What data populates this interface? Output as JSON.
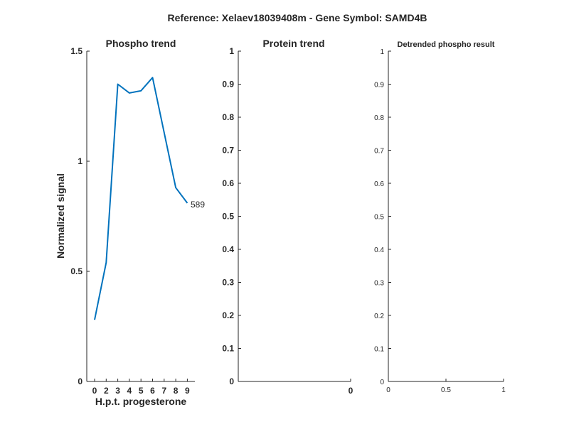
{
  "figure_title": "Reference:  Xelaev18039408m - Gene Symbol:  SAMD4B",
  "colors": {
    "series": "#0072BD",
    "axes": "#262626"
  },
  "chart_data": [
    {
      "type": "line",
      "title": "Phospho trend",
      "xlabel": "H.p.t. progesterone",
      "ylabel": "Normalized signal",
      "x_ticks": [
        "0",
        "2",
        "3",
        "4",
        "5",
        "6",
        "7",
        "8",
        "9"
      ],
      "y_ticks": [
        "0",
        "0.5",
        "1",
        "1.5"
      ],
      "ylim": [
        0,
        1.5
      ],
      "series": [
        {
          "x": [
            0,
            2,
            3,
            4,
            5,
            6,
            7,
            8,
            9
          ],
          "values": [
            0.28,
            0.54,
            1.35,
            1.31,
            1.32,
            1.38,
            1.13,
            0.88,
            0.81
          ]
        }
      ],
      "annotation": "589",
      "grid": false
    },
    {
      "type": "line",
      "title": "Protein trend",
      "xlabel": "",
      "ylabel": "",
      "x_ticks": [
        "0"
      ],
      "y_ticks": [
        "0",
        "0.1",
        "0.2",
        "0.3",
        "0.4",
        "0.5",
        "0.6",
        "0.7",
        "0.8",
        "0.9",
        "1"
      ],
      "ylim": [
        0,
        1
      ],
      "series": [],
      "grid": false
    },
    {
      "type": "line",
      "title": "Detrended phospho result",
      "xlabel": "",
      "ylabel": "",
      "x_ticks": [
        "0",
        "0.5",
        "1"
      ],
      "xlim": [
        0,
        1
      ],
      "y_ticks": [
        "0",
        "0.1",
        "0.2",
        "0.3",
        "0.4",
        "0.5",
        "0.6",
        "0.7",
        "0.8",
        "0.9",
        "1"
      ],
      "ylim": [
        0,
        1
      ],
      "series": [],
      "grid": false
    }
  ]
}
